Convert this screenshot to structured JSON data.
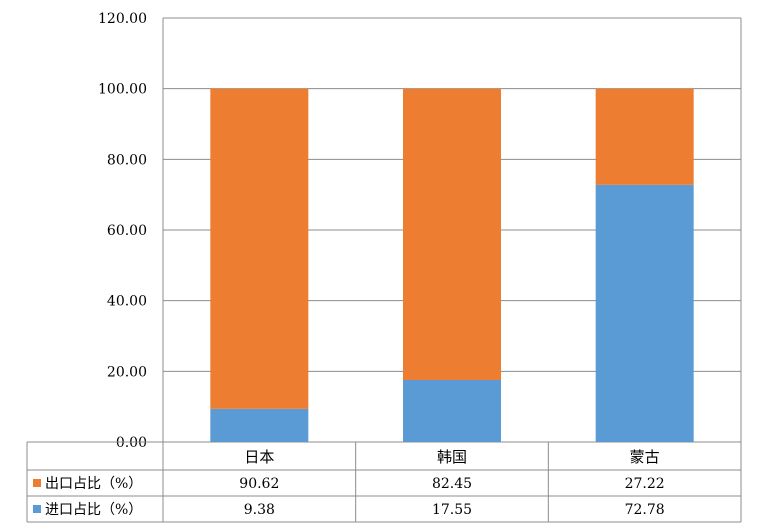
{
  "chart_data": {
    "type": "bar",
    "stacked": true,
    "title": "",
    "xlabel": "",
    "ylabel": "",
    "categories": [
      "日本",
      "韩国",
      "蒙古"
    ],
    "series": [
      {
        "name": "出口占比（%）",
        "color": "#ED7D31",
        "values": [
          90.62,
          82.45,
          27.22
        ],
        "labels": [
          "90.62",
          "82.45",
          "27.22"
        ]
      },
      {
        "name": "进口占比（%）",
        "color": "#5B9BD5",
        "values": [
          9.38,
          17.55,
          72.78
        ],
        "labels": [
          "9.38",
          "17.55",
          "72.78"
        ]
      }
    ],
    "stack_order": [
      1,
      0
    ],
    "ylim": [
      0,
      120
    ],
    "yticks": [
      0,
      20,
      40,
      60,
      80,
      100,
      120
    ],
    "ytick_labels": [
      "0.00",
      "20.00",
      "40.00",
      "60.00",
      "80.00",
      "100.00",
      "120.00"
    ],
    "grid": true,
    "legend": "data-table-below"
  }
}
